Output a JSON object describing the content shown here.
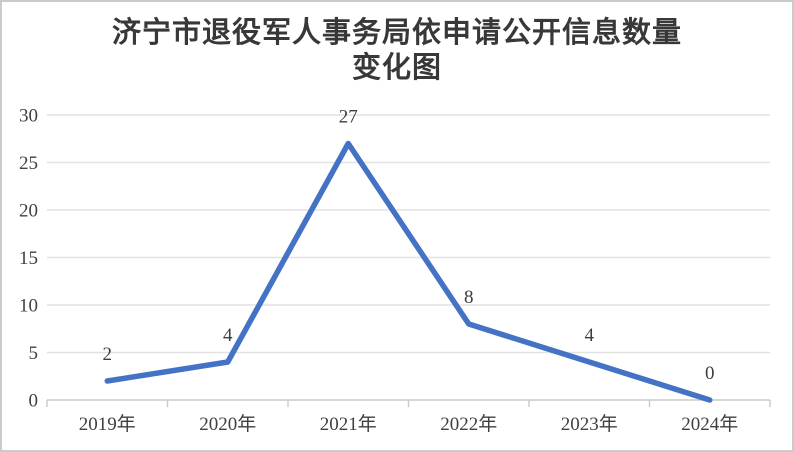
{
  "page": {
    "background_color": "#ffffff",
    "border_color": "#cbcbcb"
  },
  "chart_data": {
    "type": "line",
    "title_lines": [
      "济宁市退役军人事务局依申请公开信息数量",
      "变化图"
    ],
    "categories": [
      "2019年",
      "2020年",
      "2021年",
      "2022年",
      "2023年",
      "2024年"
    ],
    "series": [
      {
        "name": "依申请公开信息数量",
        "values": [
          2,
          4,
          27,
          8,
          4,
          0
        ]
      }
    ],
    "data_labels": [
      "2",
      "4",
      "27",
      "8",
      "4",
      "0"
    ],
    "y_ticks": [
      0,
      5,
      10,
      15,
      20,
      25,
      30
    ],
    "ylim": [
      0,
      30
    ],
    "xlabel": "",
    "ylabel": "",
    "grid": true,
    "legend": "none",
    "colors": {
      "line": "#4472c4",
      "gridline": "#e2e2e2",
      "axis": "#c9c9c9",
      "tick_text": "#404040",
      "data_label_text": "#3d3d3d",
      "title_text": "#383838"
    }
  }
}
